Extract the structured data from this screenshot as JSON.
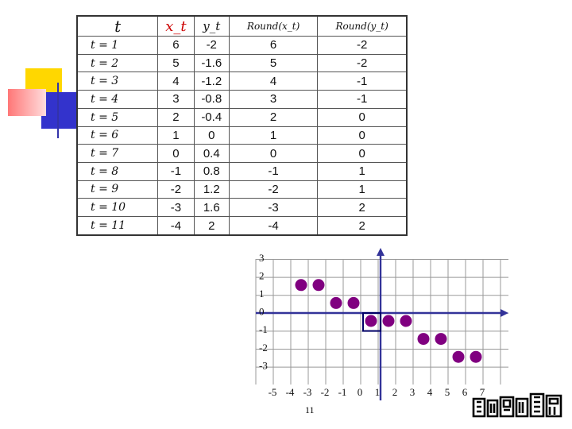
{
  "table": {
    "headers": [
      "t",
      "x_t",
      "y_t",
      "Round(x_t)",
      "Round(y_t)"
    ],
    "rows": [
      [
        "t = 1",
        "6",
        "-2",
        "6",
        "-2"
      ],
      [
        "t = 2",
        "5",
        "-1.6",
        "5",
        "-2"
      ],
      [
        "t = 3",
        "4",
        "-1.2",
        "4",
        "-1"
      ],
      [
        "t = 4",
        "3",
        "-0.8",
        "3",
        "-1"
      ],
      [
        "t = 5",
        "2",
        "-0.4",
        "2",
        "0"
      ],
      [
        "t = 6",
        "1",
        "0",
        "1",
        "0"
      ],
      [
        "t = 7",
        "0",
        "0.4",
        "0",
        "0"
      ],
      [
        "t = 8",
        "-1",
        "0.8",
        "-1",
        "1"
      ],
      [
        "t = 9",
        "-2",
        "1.2",
        "-2",
        "1"
      ],
      [
        "t = 10",
        "-3",
        "1.6",
        "-3",
        "2"
      ],
      [
        "t = 11",
        "-4",
        "2",
        "-4",
        "2"
      ]
    ]
  },
  "chart_data": {
    "type": "scatter",
    "x": [
      6,
      5,
      4,
      3,
      2,
      1,
      0,
      -1,
      -2,
      -3,
      -4
    ],
    "y": [
      -2,
      -2,
      -1,
      -1,
      0,
      0,
      0,
      1,
      1,
      2,
      2
    ],
    "xlim": [
      -6,
      7
    ],
    "ylim": [
      -3,
      3
    ],
    "xticks": [
      "-5",
      "-4",
      "-3",
      "-2",
      "-1",
      "0",
      "1",
      "2",
      "3",
      "4",
      "5",
      "6",
      "7"
    ],
    "yticks": [
      "3",
      "2",
      "1",
      "0",
      "-1",
      "-2",
      "-3"
    ],
    "grid": true,
    "point_color": "#800080",
    "axis_color": "#333399"
  },
  "page_number": "11",
  "logo_text": "电脑绘图与动画"
}
